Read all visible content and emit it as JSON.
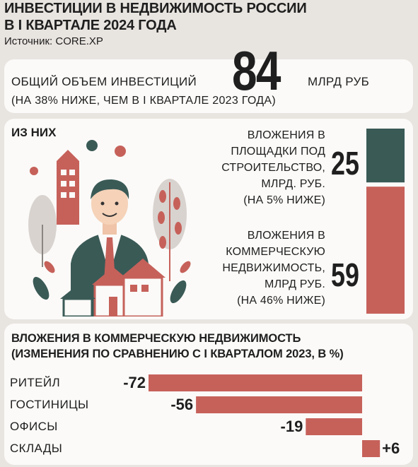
{
  "header": {
    "title_line1": "ИНВЕСТИЦИИ В НЕДВИЖИМОСТЬ РОССИИ",
    "title_line2": "В I КВАРТАЛЕ 2024 ГОДА",
    "source": "Источник: CORE.XP"
  },
  "total": {
    "label": "ОБЩИЙ ОБЪЕМ ИНВЕСТИЦИЙ",
    "value": "84",
    "unit": "МЛРД РУБ",
    "note": "(НА 38% НИЖЕ, ЧЕМ В I КВАРТАЛЕ 2023 ГОДА)"
  },
  "split": {
    "heading": "ИЗ НИХ",
    "segments": [
      {
        "lines": [
          "ВЛОЖЕНИЯ В",
          "ПЛОЩАДКИ ПОД",
          "СТРОИТЕЛЬСТВО,",
          "МЛРД. РУБ.",
          "(НА 5% НИЖЕ)"
        ],
        "value": 25,
        "value_label": "25",
        "color": "#3a5a56"
      },
      {
        "lines": [
          "ВЛОЖЕНИЯ В",
          "КОММЕРЧЕСКУЮ",
          "НЕДВИЖИМОСТЬ,",
          "МЛРД РУБ.",
          "(НА 46% НИЖЕ)"
        ],
        "value": 59,
        "value_label": "59",
        "color": "#c6615a"
      }
    ]
  },
  "chart_data": {
    "type": "bar",
    "orientation": "horizontal",
    "title": "ВЛОЖЕНИЯ В КОММЕРЧЕСКУЮ НЕДВИЖИМОСТЬ",
    "subtitle": "(ИЗМЕНЕНИЯ ПО СРАВНЕНИЮ С  I КВАРТАЛОМ 2023, В %)",
    "categories": [
      "РИТЕЙЛ",
      "ГОСТИНИЦЫ",
      "ОФИСЫ",
      "СКЛАДЫ"
    ],
    "values": [
      -72,
      -56,
      -19,
      6
    ],
    "value_labels": [
      "-72",
      "-56",
      "-19",
      "+6"
    ],
    "bar_color": "#c6615a"
  }
}
